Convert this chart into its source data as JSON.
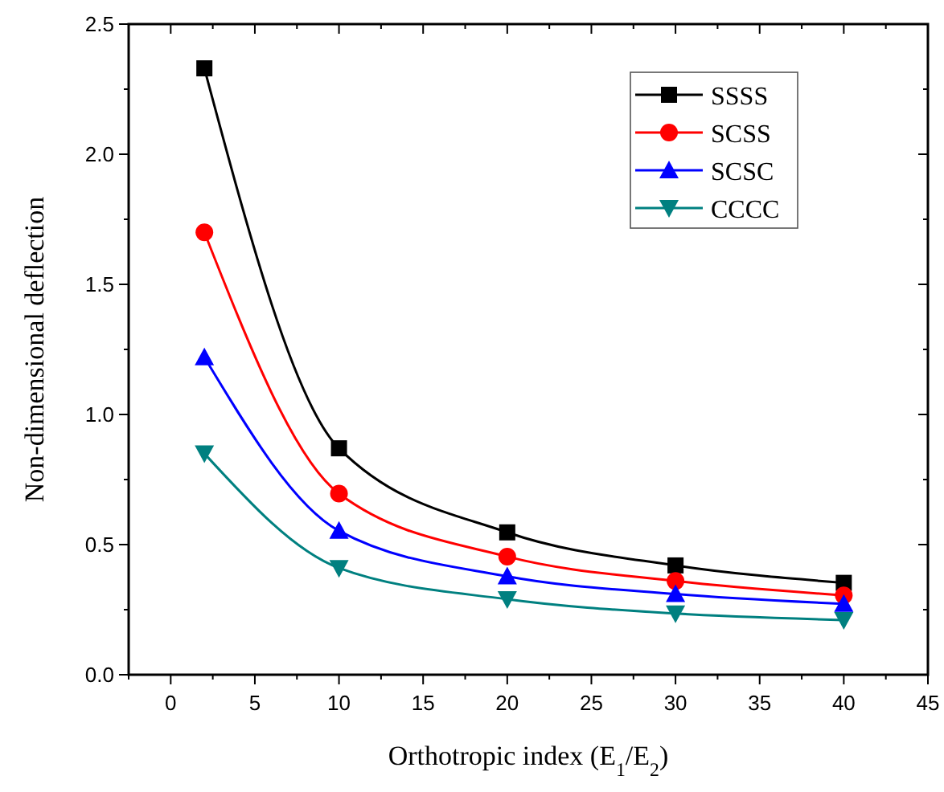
{
  "chart_data": {
    "type": "line",
    "xlabel": "Orthotropic index (E$_{1}$/E$_{2}$)",
    "ylabel": "Non-dimensional deflection",
    "x": [
      2,
      10,
      20,
      30,
      40
    ],
    "series": [
      {
        "name": "SSSS",
        "color": "#000000",
        "marker": "square",
        "values": [
          2.33,
          0.87,
          0.547,
          0.42,
          0.353
        ]
      },
      {
        "name": "SCSS",
        "color": "#ff0000",
        "marker": "circle",
        "values": [
          1.7,
          0.696,
          0.454,
          0.36,
          0.305
        ]
      },
      {
        "name": "SCSC",
        "color": "#0000ff",
        "marker": "triangle",
        "values": [
          1.22,
          0.553,
          0.378,
          0.31,
          0.272
        ]
      },
      {
        "name": "CCCC",
        "color": "#008080",
        "marker": "triangle-down",
        "values": [
          0.85,
          0.41,
          0.29,
          0.235,
          0.21
        ]
      }
    ],
    "xlim": [
      -2.5,
      45
    ],
    "xticks": [
      {
        "value": -2.5,
        "label": null
      },
      0,
      {
        "value": 2.5,
        "label": null
      },
      5,
      {
        "value": 7.5,
        "label": null
      },
      10,
      {
        "value": 12.5,
        "label": null
      },
      15,
      {
        "value": 17.5,
        "label": null
      },
      20,
      {
        "value": 22.5,
        "label": null
      },
      25,
      {
        "value": 27.5,
        "label": null
      },
      30,
      {
        "value": 32.5,
        "label": null
      },
      35,
      {
        "value": 37.5,
        "label": null
      },
      40,
      {
        "value": 42.5,
        "label": null
      },
      45
    ],
    "ylim": [
      0,
      2.5
    ],
    "yticks": [
      {
        "value": 0,
        "label": "0.0"
      },
      {
        "value": 0.25,
        "label": null
      },
      {
        "value": 0.5,
        "label": "0.5"
      },
      {
        "value": 0.75,
        "label": null
      },
      {
        "value": 1,
        "label": "1.0"
      },
      {
        "value": 1.25,
        "label": null
      },
      {
        "value": 1.5,
        "label": "1.5"
      },
      {
        "value": 1.75,
        "label": null
      },
      {
        "value": 2,
        "label": "2.0"
      },
      {
        "value": 2.25,
        "label": null
      },
      {
        "value": 2.5,
        "label": "2.5"
      }
    ],
    "legend": "top right",
    "grid": false,
    "line_style": "solid"
  }
}
